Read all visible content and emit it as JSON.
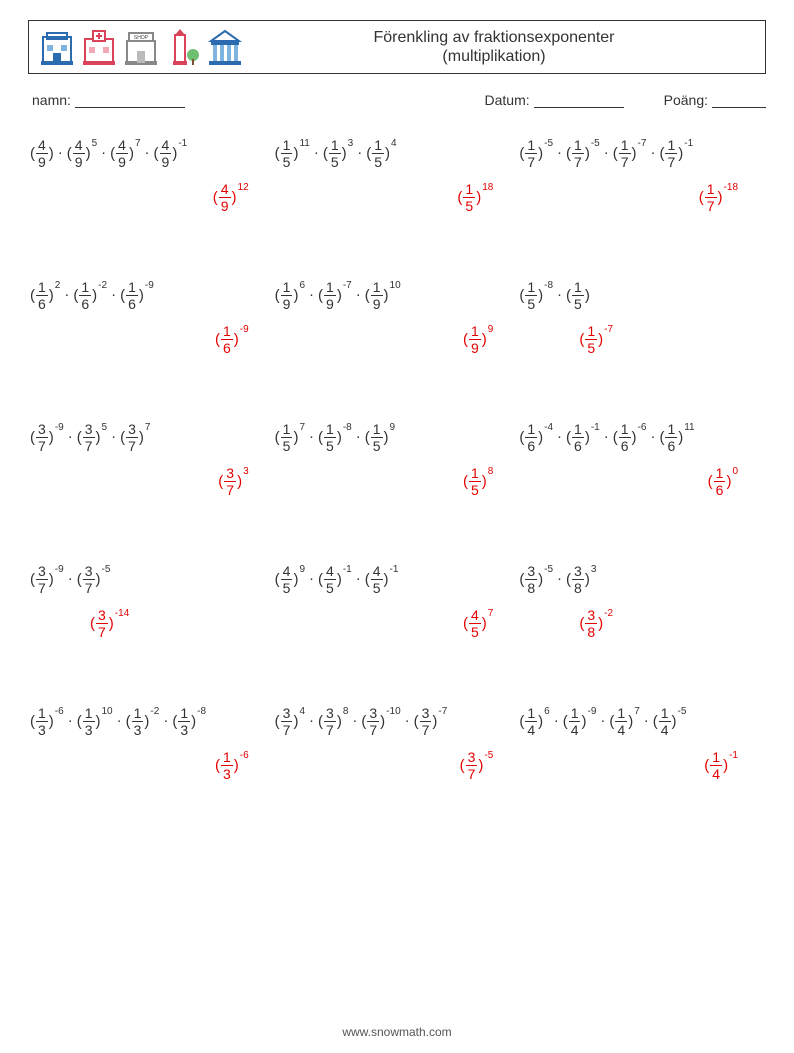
{
  "title_line1": "Förenkling av fraktionsexponenter",
  "title_line2": "(multiplikation)",
  "labels": {
    "name": "namn:",
    "date": "Datum:",
    "score": "Poäng:"
  },
  "blanks": {
    "name_w": 110,
    "date_w": 90,
    "score_w": 54
  },
  "footer": "www.snowmath.com",
  "problems": [
    {
      "terms": [
        [
          "4",
          "9",
          ""
        ],
        [
          "4",
          "9",
          "5"
        ],
        [
          "4",
          "9",
          "7"
        ],
        [
          "4",
          "9",
          "-1"
        ]
      ],
      "ans": [
        "4",
        "9",
        "12"
      ]
    },
    {
      "terms": [
        [
          "1",
          "5",
          "11"
        ],
        [
          "1",
          "5",
          "3"
        ],
        [
          "1",
          "5",
          "4"
        ]
      ],
      "ans": [
        "1",
        "5",
        "18"
      ]
    },
    {
      "terms": [
        [
          "1",
          "7",
          "-5"
        ],
        [
          "1",
          "7",
          "-5"
        ],
        [
          "1",
          "7",
          "-7"
        ],
        [
          "1",
          "7",
          "-1"
        ]
      ],
      "ans": [
        "1",
        "7",
        "-18"
      ]
    },
    {
      "terms": [
        [
          "1",
          "6",
          "2"
        ],
        [
          "1",
          "6",
          "-2"
        ],
        [
          "1",
          "6",
          "-9"
        ]
      ],
      "ans": [
        "1",
        "6",
        "-9"
      ]
    },
    {
      "terms": [
        [
          "1",
          "9",
          "6"
        ],
        [
          "1",
          "9",
          "-7"
        ],
        [
          "1",
          "9",
          "10"
        ]
      ],
      "ans": [
        "1",
        "9",
        "9"
      ]
    },
    {
      "terms": [
        [
          "1",
          "5",
          "-8"
        ],
        [
          "1",
          "5",
          ""
        ]
      ],
      "ans": [
        "1",
        "5",
        "-7"
      ],
      "ans_shift": -90
    },
    {
      "terms": [
        [
          "3",
          "7",
          "-9"
        ],
        [
          "3",
          "7",
          "5"
        ],
        [
          "3",
          "7",
          "7"
        ]
      ],
      "ans": [
        "3",
        "7",
        "3"
      ]
    },
    {
      "terms": [
        [
          "1",
          "5",
          "7"
        ],
        [
          "1",
          "5",
          "-8"
        ],
        [
          "1",
          "5",
          "9"
        ]
      ],
      "ans": [
        "1",
        "5",
        "8"
      ]
    },
    {
      "terms": [
        [
          "1",
          "6",
          "-4"
        ],
        [
          "1",
          "6",
          "-1"
        ],
        [
          "1",
          "6",
          "-6"
        ],
        [
          "1",
          "6",
          "11"
        ]
      ],
      "ans": [
        "1",
        "6",
        "0"
      ]
    },
    {
      "terms": [
        [
          "3",
          "7",
          "-9"
        ],
        [
          "3",
          "7",
          "-5"
        ]
      ],
      "ans": [
        "3",
        "7",
        "-14"
      ],
      "ans_shift": -90
    },
    {
      "terms": [
        [
          "4",
          "5",
          "9"
        ],
        [
          "4",
          "5",
          "-1"
        ],
        [
          "4",
          "5",
          "-1"
        ]
      ],
      "ans": [
        "4",
        "5",
        "7"
      ]
    },
    {
      "terms": [
        [
          "3",
          "8",
          "-5"
        ],
        [
          "3",
          "8",
          "3"
        ]
      ],
      "ans": [
        "3",
        "8",
        "-2"
      ],
      "ans_shift": -90
    },
    {
      "terms": [
        [
          "1",
          "3",
          "-6"
        ],
        [
          "1",
          "3",
          "10"
        ],
        [
          "1",
          "3",
          "-2"
        ],
        [
          "1",
          "3",
          "-8"
        ]
      ],
      "ans": [
        "1",
        "3",
        "-6"
      ]
    },
    {
      "terms": [
        [
          "3",
          "7",
          "4"
        ],
        [
          "3",
          "7",
          "8"
        ],
        [
          "3",
          "7",
          "-10"
        ],
        [
          "3",
          "7",
          "-7"
        ]
      ],
      "ans": [
        "3",
        "7",
        "-5"
      ]
    },
    {
      "terms": [
        [
          "1",
          "4",
          "6"
        ],
        [
          "1",
          "4",
          "-9"
        ],
        [
          "1",
          "4",
          "7"
        ],
        [
          "1",
          "4",
          "-5"
        ]
      ],
      "ans": [
        "1",
        "4",
        "-1"
      ]
    }
  ]
}
